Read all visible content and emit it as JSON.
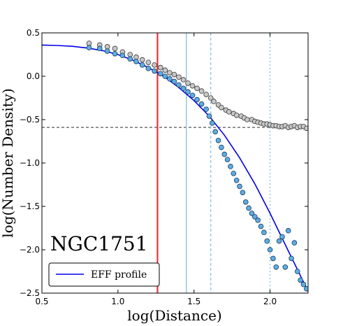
{
  "chart_data": {
    "type": "scatter",
    "xlabel": "log(Distance)",
    "ylabel": "log(Number Density)",
    "xlim": [
      0.5,
      2.25
    ],
    "ylim": [
      -2.5,
      0.5
    ],
    "x_ticks": [
      0.5,
      1.0,
      1.5,
      2.0
    ],
    "x_tick_labels": [
      "0.5",
      "1.0",
      "1.5",
      "2.0"
    ],
    "y_ticks": [
      0.5,
      0.0,
      -0.5,
      -1.0,
      -1.5,
      -2.0,
      -2.5
    ],
    "y_tick_labels": [
      "0.5",
      "0.0",
      "−0.5",
      "−1.0",
      "−1.5",
      "−2.0",
      "−2.5"
    ],
    "annotation": "NGC1751",
    "legend": {
      "label": "EFF profile",
      "placement": "lower-left"
    },
    "colors": {
      "eff": "#0000ee",
      "red_line": "#e8323c",
      "light_blue": "#9ecae1",
      "gray_face": "#c8c8c8",
      "blue_face": "#5dade2",
      "hline": "#555555"
    },
    "hline": {
      "y": -0.59,
      "style": "dashed"
    },
    "vlines": [
      {
        "x": 1.26,
        "style": "solid",
        "color": "red"
      },
      {
        "x": 1.45,
        "style": "solid",
        "color": "light-blue"
      },
      {
        "x": 1.61,
        "style": "dashed",
        "color": "light-blue"
      },
      {
        "x": 2.0,
        "style": "dotted",
        "color": "light-blue"
      }
    ],
    "eff_profile": {
      "x": [
        0.5,
        0.6,
        0.7,
        0.8,
        0.9,
        1.0,
        1.1,
        1.2,
        1.3,
        1.4,
        1.5,
        1.6,
        1.7,
        1.8,
        1.9,
        2.0,
        2.1,
        2.2,
        2.25
      ],
      "y": [
        0.36,
        0.355,
        0.345,
        0.325,
        0.295,
        0.25,
        0.185,
        0.1,
        0.0,
        -0.13,
        -0.28,
        -0.46,
        -0.68,
        -0.94,
        -1.24,
        -1.58,
        -1.94,
        -2.3,
        -2.48
      ]
    },
    "series": [
      {
        "name": "",
        "marker": "gray-circle",
        "x": [
          0.81,
          0.88,
          0.93,
          0.98,
          1.03,
          1.08,
          1.12,
          1.16,
          1.2,
          1.24,
          1.28,
          1.31,
          1.34,
          1.37,
          1.4,
          1.43,
          1.46,
          1.49,
          1.52,
          1.55,
          1.58,
          1.61,
          1.63,
          1.66,
          1.68,
          1.71,
          1.73,
          1.76,
          1.78,
          1.81,
          1.83,
          1.85,
          1.88,
          1.9,
          1.92,
          1.94,
          1.96,
          1.98,
          2.0,
          2.02,
          2.04,
          2.06,
          2.08,
          2.1,
          2.12,
          2.14,
          2.16,
          2.18,
          2.2,
          2.22,
          2.24
        ],
        "y": [
          0.38,
          0.36,
          0.34,
          0.32,
          0.28,
          0.25,
          0.22,
          0.19,
          0.16,
          0.13,
          0.1,
          0.07,
          0.04,
          0.02,
          -0.01,
          -0.04,
          -0.08,
          -0.11,
          -0.14,
          -0.17,
          -0.21,
          -0.25,
          -0.29,
          -0.33,
          -0.36,
          -0.39,
          -0.41,
          -0.43,
          -0.45,
          -0.46,
          -0.48,
          -0.5,
          -0.5,
          -0.52,
          -0.53,
          -0.54,
          -0.55,
          -0.55,
          -0.56,
          -0.57,
          -0.57,
          -0.58,
          -0.58,
          -0.57,
          -0.59,
          -0.58,
          -0.57,
          -0.59,
          -0.58,
          -0.58,
          -0.6
        ]
      },
      {
        "name": "",
        "marker": "blue-circle",
        "x": [
          0.81,
          0.88,
          0.93,
          0.98,
          1.03,
          1.08,
          1.12,
          1.16,
          1.2,
          1.24,
          1.28,
          1.31,
          1.34,
          1.37,
          1.4,
          1.43,
          1.46,
          1.49,
          1.52,
          1.55,
          1.58,
          1.6,
          1.62,
          1.64,
          1.66,
          1.68,
          1.7,
          1.72,
          1.74,
          1.76,
          1.78,
          1.8,
          1.82,
          1.84,
          1.86,
          1.88,
          1.9,
          1.92,
          1.94,
          1.96,
          1.98,
          2.0,
          2.02,
          2.04,
          2.06,
          2.08,
          2.1,
          2.12,
          2.14,
          2.16,
          2.18,
          2.2,
          2.22,
          2.24
        ],
        "y": [
          0.33,
          0.32,
          0.29,
          0.26,
          0.24,
          0.2,
          0.17,
          0.13,
          0.09,
          0.06,
          0.03,
          0.0,
          -0.03,
          -0.06,
          -0.1,
          -0.14,
          -0.18,
          -0.22,
          -0.27,
          -0.32,
          -0.38,
          -0.46,
          -0.54,
          -0.64,
          -0.74,
          -0.82,
          -0.9,
          -0.96,
          -1.04,
          -1.12,
          -1.2,
          -1.27,
          -1.34,
          -1.45,
          -1.52,
          -1.58,
          -1.62,
          -1.66,
          -1.73,
          -1.8,
          -1.9,
          -2.0,
          -2.1,
          -2.2,
          -1.9,
          -1.85,
          -2.2,
          -1.78,
          -2.1,
          -1.92,
          -2.25,
          -2.35,
          -2.4,
          -2.45
        ]
      }
    ]
  }
}
